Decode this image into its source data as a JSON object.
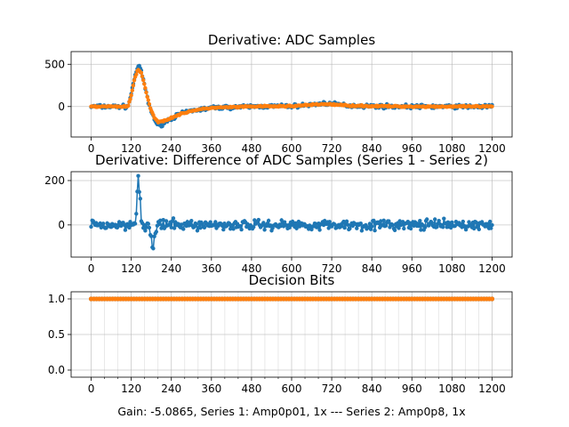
{
  "chart_data": [
    {
      "type": "line",
      "title": "Derivative: ADC Samples",
      "xlabel": "",
      "ylabel": "",
      "xlim": [
        -60,
        1260
      ],
      "ylim": [
        -360,
        650
      ],
      "x_ticks": [
        0,
        120,
        240,
        360,
        480,
        600,
        720,
        840,
        960,
        1080,
        1200
      ],
      "y_ticks": [
        0,
        500
      ],
      "grid": true,
      "legend": "none",
      "series": [
        {
          "color": "#1f77b4",
          "marker": "dot",
          "x": [
            0,
            60,
            110,
            120,
            130,
            140,
            150,
            160,
            170,
            180,
            190,
            200,
            215,
            230,
            260,
            300,
            360,
            480,
            600,
            660,
            700,
            720,
            780,
            840,
            960,
            1080,
            1200
          ],
          "values": [
            0,
            0,
            0,
            150,
            350,
            480,
            420,
            250,
            60,
            -60,
            -150,
            -230,
            -200,
            -160,
            -100,
            -50,
            -15,
            0,
            5,
            20,
            40,
            30,
            10,
            5,
            0,
            0,
            0
          ]
        },
        {
          "color": "#ff7f0e",
          "marker": "dot",
          "x": [
            0,
            60,
            110,
            120,
            130,
            140,
            150,
            160,
            170,
            180,
            190,
            200,
            215,
            230,
            260,
            300,
            360,
            480,
            600,
            660,
            700,
            720,
            780,
            840,
            960,
            1080,
            1200
          ],
          "values": [
            0,
            0,
            0,
            130,
            330,
            440,
            400,
            250,
            80,
            -50,
            -140,
            -180,
            -170,
            -150,
            -100,
            -50,
            -15,
            0,
            5,
            20,
            30,
            25,
            10,
            5,
            0,
            0,
            0
          ]
        }
      ]
    },
    {
      "type": "line",
      "title": "Derivative: Difference of ADC Samples (Series 1 - Series 2)",
      "xlabel": "",
      "ylabel": "",
      "xlim": [
        -60,
        1260
      ],
      "ylim": [
        -145,
        240
      ],
      "x_ticks": [
        0,
        120,
        240,
        360,
        480,
        600,
        720,
        840,
        960,
        1080,
        1200
      ],
      "y_ticks": [
        0,
        200
      ],
      "grid": true,
      "legend": "none",
      "series": [
        {
          "color": "#1f77b4",
          "marker": "dot",
          "x": [
            0,
            100,
            130,
            135,
            140,
            145,
            150,
            160,
            170,
            180,
            185,
            190,
            200,
            300,
            500,
            700,
            900,
            1100,
            1200
          ],
          "values": [
            0,
            0,
            10,
            60,
            225,
            150,
            30,
            -15,
            0,
            -60,
            -120,
            -40,
            0,
            0,
            0,
            0,
            0,
            0,
            0
          ]
        }
      ]
    },
    {
      "type": "line",
      "title": "Decision Bits",
      "xlabel": "Gain: -5.0865, Series 1: Amp0p01, 1x --- Series 2: Amp0p8, 1x",
      "ylabel": "",
      "xlim": [
        -60,
        1260
      ],
      "ylim": [
        -0.1,
        1.1
      ],
      "x_ticks": [
        0,
        120,
        240,
        360,
        480,
        600,
        720,
        840,
        960,
        1080,
        1200
      ],
      "y_ticks": [
        0.0,
        0.5,
        1.0
      ],
      "grid": true,
      "legend": "none",
      "series": [
        {
          "color": "#1f77b4",
          "marker": "dot",
          "x": [
            0,
            1200
          ],
          "values": [
            1.0,
            1.0
          ]
        },
        {
          "color": "#ff7f0e",
          "marker": "dot",
          "x": [
            0,
            1200
          ],
          "values": [
            1.0,
            1.0
          ]
        }
      ]
    }
  ]
}
